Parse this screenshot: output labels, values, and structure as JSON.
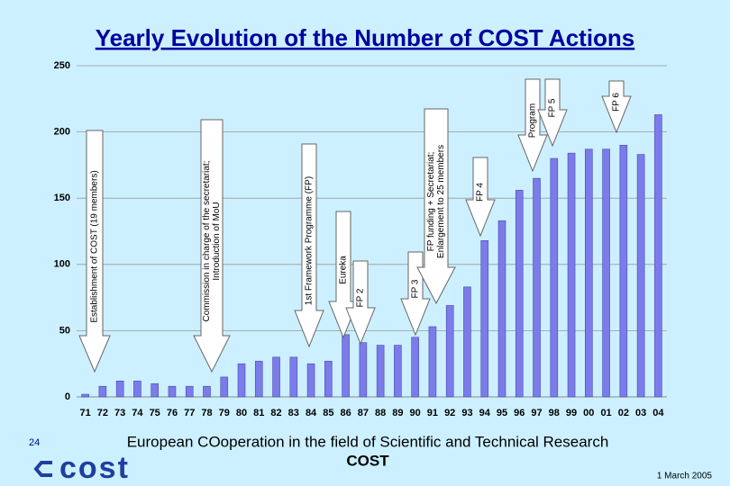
{
  "chart_data": {
    "type": "bar",
    "title": "Yearly Evolution of the Number of COST Actions",
    "categories": [
      "71",
      "72",
      "73",
      "74",
      "75",
      "76",
      "77",
      "78",
      "79",
      "80",
      "81",
      "82",
      "83",
      "84",
      "85",
      "86",
      "87",
      "88",
      "89",
      "90",
      "91",
      "92",
      "93",
      "94",
      "95",
      "96",
      "97",
      "98",
      "99",
      "00",
      "01",
      "02",
      "03",
      "04"
    ],
    "values": [
      2,
      8,
      12,
      12,
      10,
      8,
      8,
      8,
      15,
      25,
      27,
      30,
      30,
      25,
      27,
      47,
      41,
      39,
      39,
      45,
      53,
      69,
      83,
      118,
      133,
      156,
      165,
      180,
      184,
      187,
      187,
      190,
      183,
      213
    ],
    "color": "#7b7bea",
    "ylim": [
      0,
      250
    ],
    "yticks": [
      0,
      50,
      100,
      150,
      200,
      250
    ],
    "grid": true,
    "annotations": [
      {
        "lines": [
          "Establishment of COST (19 members)"
        ]
      },
      {
        "lines": [
          "Commission in charge of the secretariat;",
          "Introduction of MoU"
        ]
      },
      {
        "lines": [
          "1st Framework Programme (FP)"
        ]
      },
      {
        "lines": [
          "Eureka"
        ]
      },
      {
        "lines": [
          "FP 2"
        ]
      },
      {
        "lines": [
          "FP 3"
        ]
      },
      {
        "lines": [
          "FP funding + Secretariat;",
          "Enlargement to 25 members"
        ]
      },
      {
        "lines": [
          "FP 4"
        ]
      },
      {
        "lines": [
          "Program"
        ]
      },
      {
        "lines": [
          "FP 5"
        ]
      },
      {
        "lines": [
          "FP 6"
        ]
      }
    ]
  },
  "footer": {
    "page": "24",
    "text": "European COoperation in the field of Scientific and Technical Research",
    "subtitle": "COST",
    "logo": "cost",
    "date": "1 March 2005"
  }
}
